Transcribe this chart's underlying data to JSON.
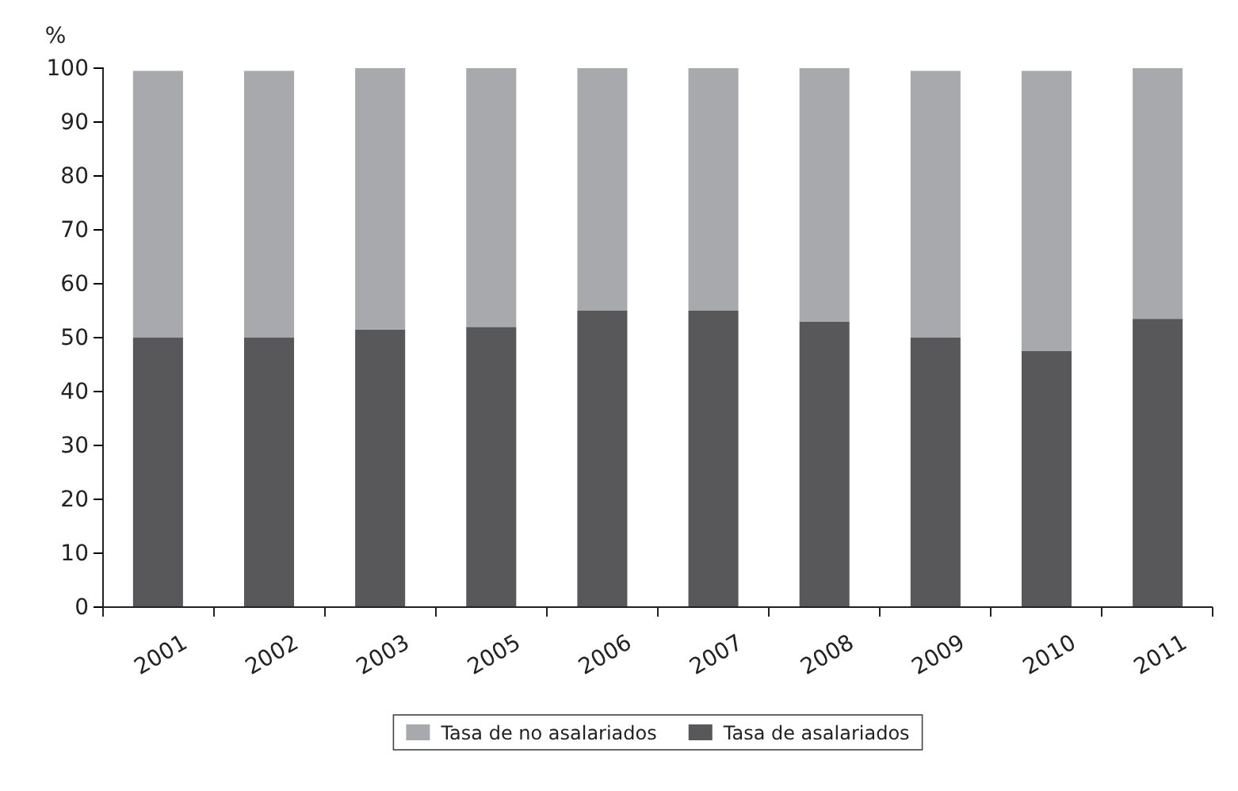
{
  "chart_data": {
    "type": "bar",
    "stacked": true,
    "ylabel": "%",
    "categories": [
      "2001",
      "2002",
      "2003",
      "2005",
      "2006",
      "2007",
      "2008",
      "2009",
      "2010",
      "2011"
    ],
    "series": [
      {
        "name": "Tasa de asalariados",
        "color": "#58585a",
        "values": [
          50,
          50,
          51.5,
          52,
          55,
          55,
          53,
          50,
          47.5,
          53.5
        ]
      },
      {
        "name": "Tasa de no asalariados",
        "color": "#a7a9ac",
        "values": [
          49.5,
          49.5,
          48.5,
          48,
          45,
          45,
          47,
          49.5,
          52,
          46.5
        ]
      }
    ],
    "ylim": [
      0,
      100
    ],
    "yticks": [
      0,
      10,
      20,
      30,
      40,
      50,
      60,
      70,
      80,
      90,
      100
    ],
    "grid": false,
    "legend": "bottom"
  }
}
